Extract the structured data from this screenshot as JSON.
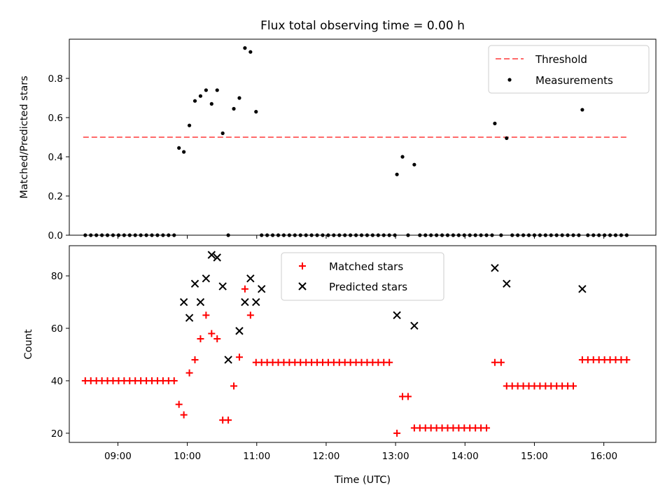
{
  "chart_data": [
    {
      "type": "scatter",
      "title": "Flux total observing time = 0.00 h",
      "ylabel": "Matched/Predicted stars",
      "xlabel": "",
      "xlim": [
        8.3,
        16.75
      ],
      "ylim": [
        0.0,
        1.0
      ],
      "yticks": [
        "0.0",
        "0.2",
        "0.4",
        "0.6",
        "0.8"
      ],
      "legend": [
        "Threshold",
        "Measurements"
      ],
      "legend_position": "top-right",
      "threshold": {
        "name": "Threshold",
        "x": [
          8.5,
          16.33
        ],
        "y": 0.5,
        "color": "#ff6a6a"
      },
      "series": [
        {
          "name": "Measurements",
          "color": "#000000",
          "x": [
            8.53,
            8.61,
            8.69,
            8.77,
            8.85,
            8.93,
            9.01,
            9.09,
            9.17,
            9.25,
            9.33,
            9.41,
            9.49,
            9.57,
            9.65,
            9.73,
            9.81,
            9.88,
            9.95,
            10.03,
            10.11,
            10.19,
            10.27,
            10.35,
            10.43,
            10.51,
            10.59,
            10.67,
            10.75,
            10.83,
            10.91,
            10.99,
            11.07,
            11.15,
            11.23,
            11.31,
            11.39,
            11.47,
            11.55,
            11.63,
            11.71,
            11.79,
            11.87,
            11.95,
            12.03,
            12.11,
            12.19,
            12.27,
            12.35,
            12.43,
            12.51,
            12.59,
            12.67,
            12.75,
            12.83,
            12.91,
            12.99,
            13.02,
            13.1,
            13.18,
            13.27,
            13.35,
            13.43,
            13.51,
            13.59,
            13.67,
            13.75,
            13.83,
            13.91,
            13.99,
            14.07,
            14.15,
            14.23,
            14.31,
            14.39,
            14.43,
            14.52,
            14.6,
            14.68,
            14.76,
            14.84,
            14.92,
            15.0,
            15.08,
            15.16,
            15.24,
            15.32,
            15.4,
            15.48,
            15.56,
            15.64,
            15.69,
            15.77,
            15.85,
            15.93,
            16.01,
            16.09,
            16.17,
            16.25,
            16.33
          ],
          "y": [
            0,
            0,
            0,
            0,
            0,
            0,
            0,
            0,
            0,
            0,
            0,
            0,
            0,
            0,
            0,
            0,
            0,
            0.445,
            0.425,
            0.56,
            0.685,
            0.71,
            0.74,
            0.67,
            0.74,
            0.52,
            0,
            0.645,
            0.7,
            0.955,
            0.935,
            0.63,
            0,
            0,
            0,
            0,
            0,
            0,
            0,
            0,
            0,
            0,
            0,
            0,
            0,
            0,
            0,
            0,
            0,
            0,
            0,
            0,
            0,
            0,
            0,
            0,
            0,
            0.31,
            0.4,
            0,
            0.36,
            0,
            0,
            0,
            0,
            0,
            0,
            0,
            0,
            0,
            0,
            0,
            0,
            0,
            0,
            0.57,
            0,
            0.495,
            0,
            0,
            0,
            0,
            0,
            0,
            0,
            0,
            0,
            0,
            0,
            0,
            0,
            0.64,
            0,
            0,
            0,
            0,
            0,
            0,
            0,
            0
          ]
        }
      ]
    },
    {
      "type": "scatter",
      "title": "",
      "xlabel": "Time (UTC)",
      "ylabel": "Count",
      "xlim": [
        8.3,
        16.75
      ],
      "ylim": [
        16.5,
        91.5
      ],
      "xticks": [
        9,
        10,
        11,
        12,
        13,
        14,
        15,
        16
      ],
      "xtick_labels": [
        "09:00",
        "10:00",
        "11:00",
        "12:00",
        "13:00",
        "14:00",
        "15:00",
        "16:00"
      ],
      "yticks": [
        "20",
        "40",
        "60",
        "80"
      ],
      "legend": [
        "Matched stars",
        "Predicted stars"
      ],
      "legend_position": "top-center",
      "series": [
        {
          "name": "Matched stars",
          "marker": "+",
          "color": "#ff0000",
          "x": [
            8.53,
            8.61,
            8.69,
            8.77,
            8.85,
            8.93,
            9.01,
            9.09,
            9.17,
            9.25,
            9.33,
            9.41,
            9.49,
            9.57,
            9.65,
            9.73,
            9.81,
            9.88,
            9.95,
            10.03,
            10.11,
            10.19,
            10.27,
            10.35,
            10.43,
            10.51,
            10.59,
            10.67,
            10.75,
            10.83,
            10.91,
            10.99,
            11.07,
            11.15,
            11.23,
            11.31,
            11.39,
            11.47,
            11.55,
            11.63,
            11.71,
            11.79,
            11.87,
            11.95,
            12.03,
            12.11,
            12.19,
            12.27,
            12.35,
            12.43,
            12.51,
            12.59,
            12.67,
            12.75,
            12.83,
            12.91,
            13.02,
            13.1,
            13.18,
            13.27,
            13.35,
            13.43,
            13.51,
            13.59,
            13.67,
            13.75,
            13.83,
            13.91,
            13.99,
            14.07,
            14.15,
            14.23,
            14.31,
            14.43,
            14.52,
            14.6,
            14.68,
            14.76,
            14.84,
            14.92,
            15.0,
            15.08,
            15.16,
            15.24,
            15.32,
            15.4,
            15.48,
            15.56,
            15.69,
            15.77,
            15.85,
            15.93,
            16.01,
            16.09,
            16.17,
            16.25,
            16.33
          ],
          "y": [
            40,
            40,
            40,
            40,
            40,
            40,
            40,
            40,
            40,
            40,
            40,
            40,
            40,
            40,
            40,
            40,
            40,
            31,
            27,
            43,
            48,
            56,
            65,
            58,
            56,
            25,
            25,
            38,
            49,
            75,
            65,
            47,
            47,
            47,
            47,
            47,
            47,
            47,
            47,
            47,
            47,
            47,
            47,
            47,
            47,
            47,
            47,
            47,
            47,
            47,
            47,
            47,
            47,
            47,
            47,
            47,
            20,
            34,
            34,
            22,
            22,
            22,
            22,
            22,
            22,
            22,
            22,
            22,
            22,
            22,
            22,
            22,
            22,
            47,
            47,
            38,
            38,
            38,
            38,
            38,
            38,
            38,
            38,
            38,
            38,
            38,
            38,
            38,
            48,
            48,
            48,
            48,
            48,
            48,
            48,
            48,
            48
          ]
        },
        {
          "name": "Predicted stars",
          "marker": "x",
          "color": "#000000",
          "x": [
            9.95,
            10.03,
            10.11,
            10.19,
            10.27,
            10.35,
            10.43,
            10.51,
            10.59,
            10.75,
            10.83,
            10.91,
            10.99,
            11.07,
            13.02,
            13.27,
            14.43,
            14.6,
            15.69
          ],
          "y": [
            70,
            64,
            77,
            70,
            79,
            88,
            87,
            76,
            48,
            59,
            70,
            79,
            70,
            75,
            65,
            61,
            83,
            77,
            75
          ]
        }
      ]
    }
  ]
}
